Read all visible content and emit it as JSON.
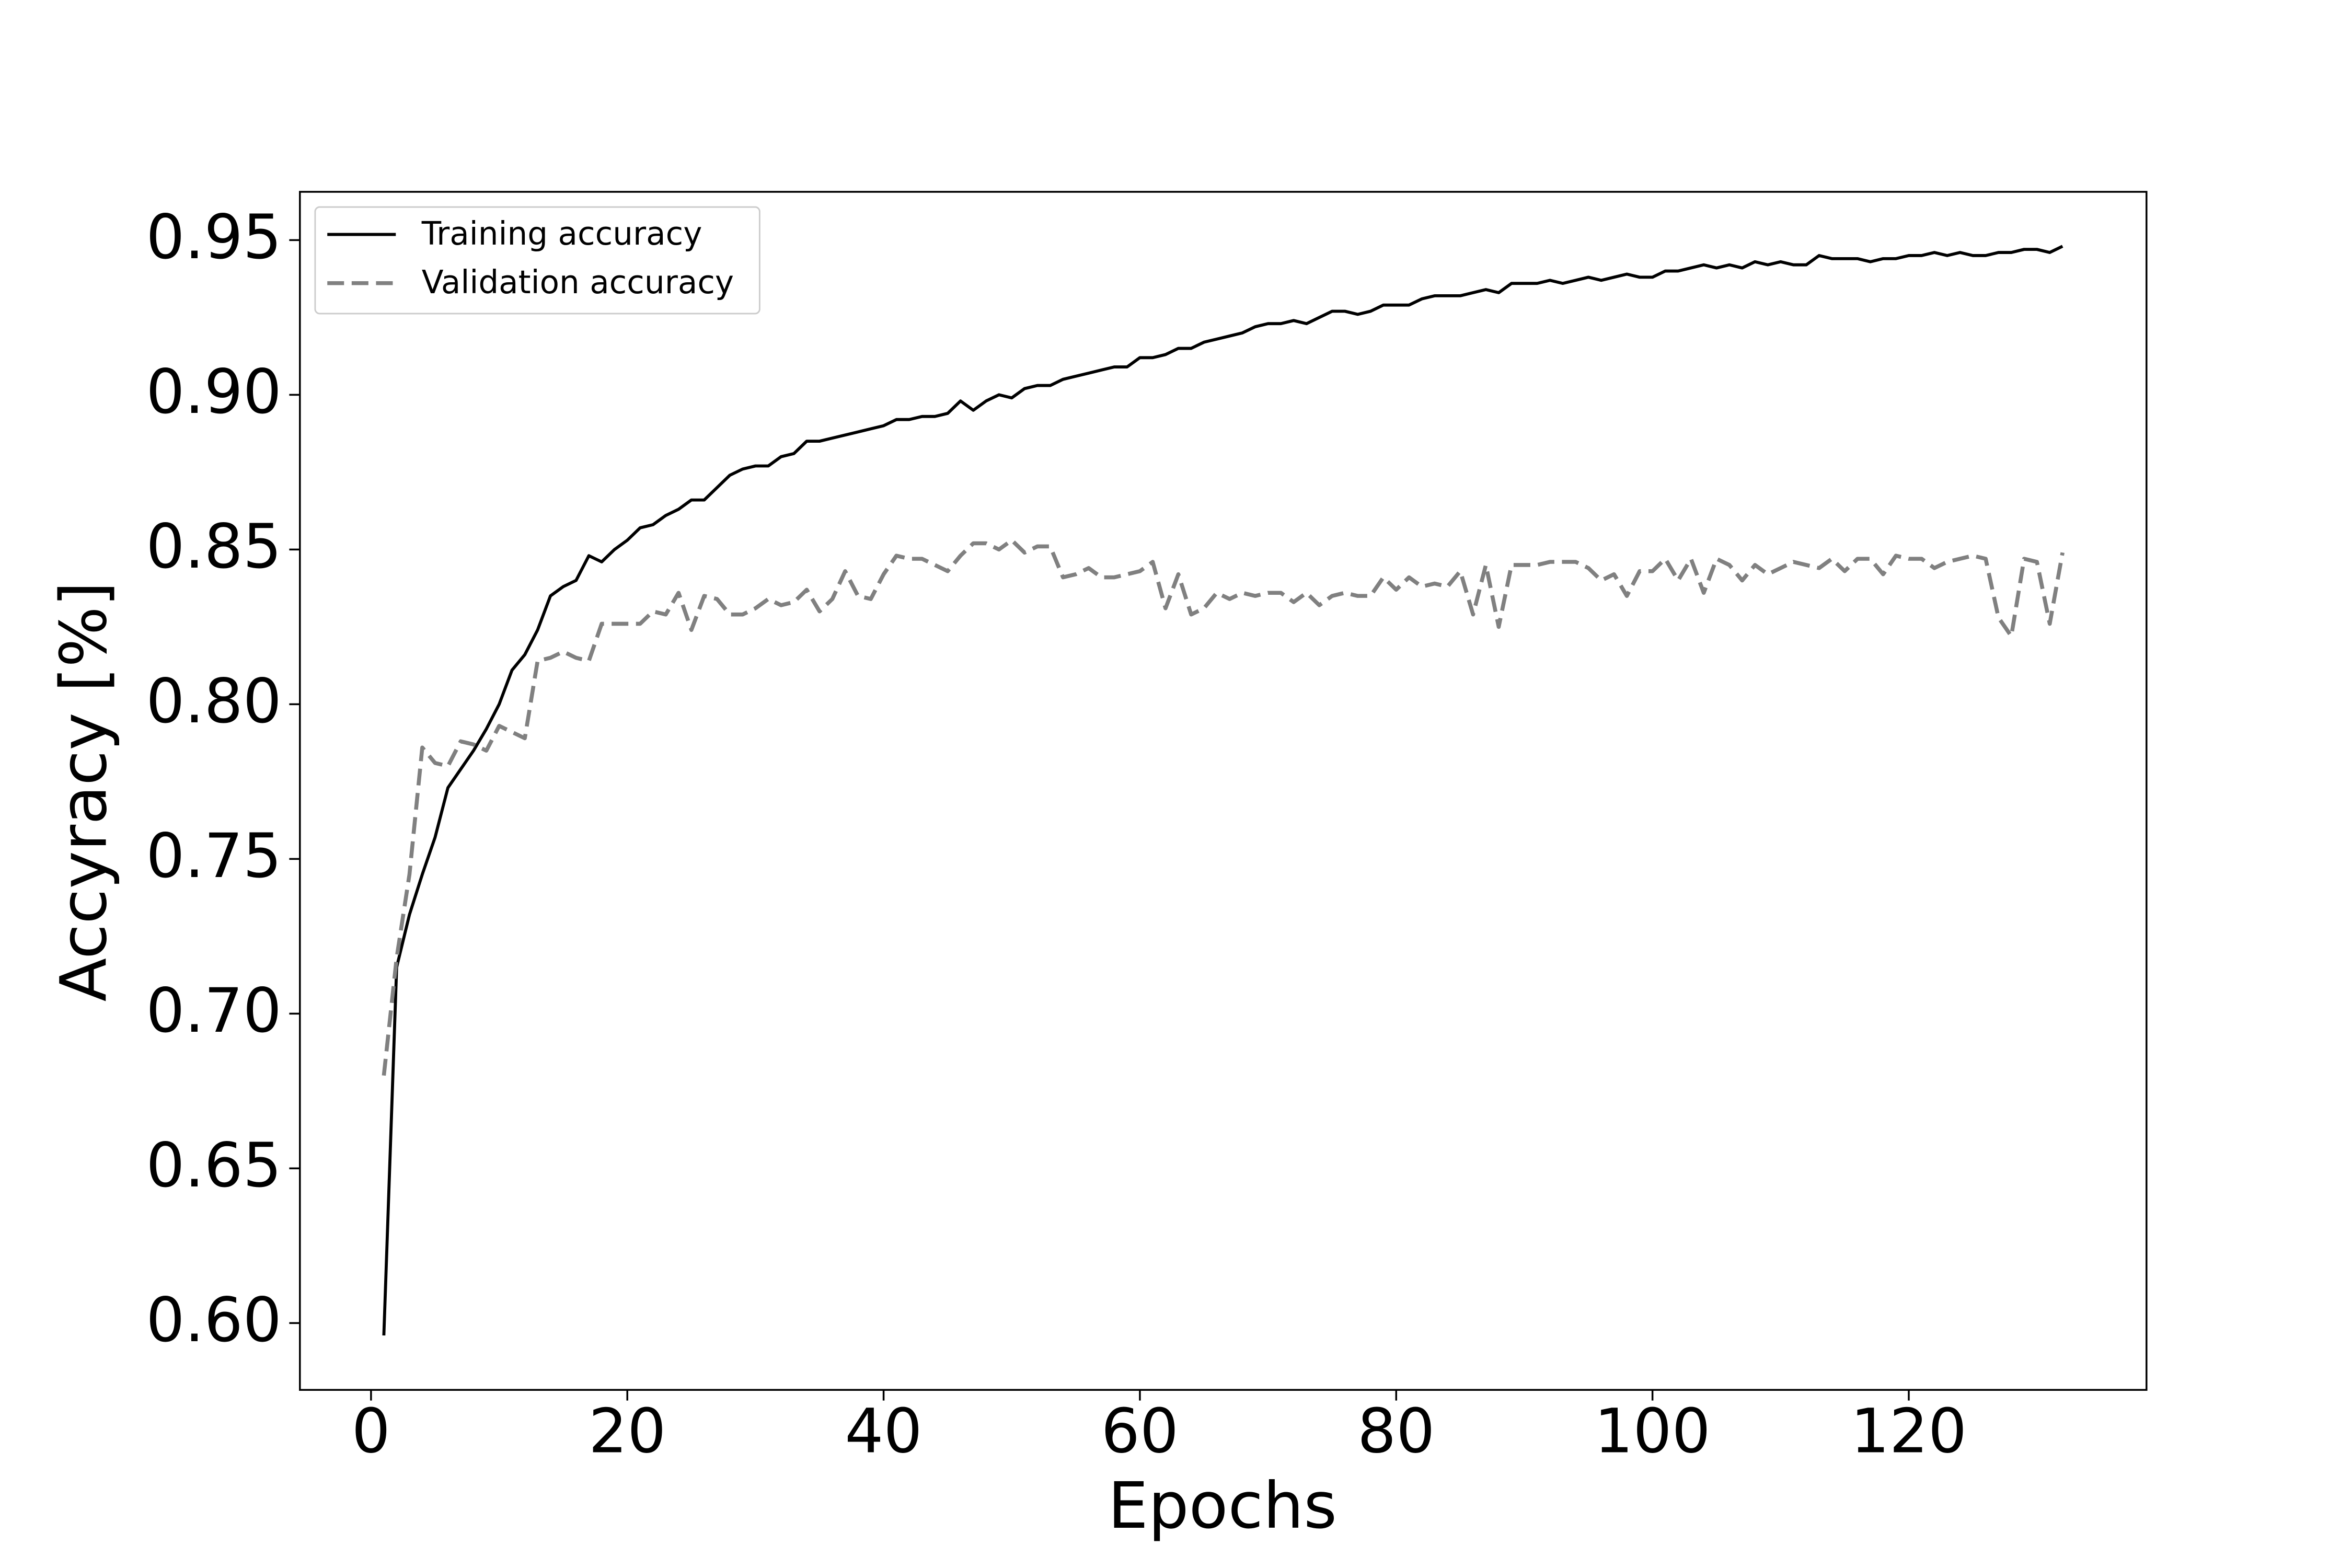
{
  "chart_data": {
    "type": "line",
    "xlabel": "Epochs",
    "ylabel": "Accyracy [%]",
    "x": [
      1,
      2,
      3,
      4,
      5,
      6,
      7,
      8,
      9,
      10,
      11,
      12,
      13,
      14,
      15,
      16,
      17,
      18,
      19,
      20,
      21,
      22,
      23,
      24,
      25,
      26,
      27,
      28,
      29,
      30,
      31,
      32,
      33,
      34,
      35,
      36,
      37,
      38,
      39,
      40,
      41,
      42,
      43,
      44,
      45,
      46,
      47,
      48,
      49,
      50,
      51,
      52,
      53,
      54,
      55,
      56,
      57,
      58,
      59,
      60,
      61,
      62,
      63,
      64,
      65,
      66,
      67,
      68,
      69,
      70,
      71,
      72,
      73,
      74,
      75,
      76,
      77,
      78,
      79,
      80,
      81,
      82,
      83,
      84,
      85,
      86,
      87,
      88,
      89,
      90,
      91,
      92,
      93,
      94,
      95,
      96,
      97,
      98,
      99,
      100,
      101,
      102,
      103,
      104,
      105,
      106,
      107,
      108,
      109,
      110,
      111,
      112,
      113,
      114,
      115,
      116,
      117,
      118,
      119,
      120,
      121,
      122,
      123,
      124,
      125,
      126,
      127,
      128,
      129,
      130,
      131,
      132
    ],
    "series": [
      {
        "name": "Training accuracy",
        "color": "#000000",
        "linestyle": "solid",
        "values": [
          0.596,
          0.715,
          0.732,
          0.745,
          0.757,
          0.773,
          0.779,
          0.785,
          0.792,
          0.8,
          0.811,
          0.816,
          0.824,
          0.835,
          0.838,
          0.84,
          0.848,
          0.846,
          0.85,
          0.853,
          0.857,
          0.858,
          0.861,
          0.863,
          0.866,
          0.866,
          0.87,
          0.874,
          0.876,
          0.877,
          0.877,
          0.88,
          0.881,
          0.885,
          0.885,
          0.886,
          0.887,
          0.888,
          0.889,
          0.89,
          0.892,
          0.892,
          0.893,
          0.893,
          0.894,
          0.898,
          0.895,
          0.898,
          0.9,
          0.899,
          0.902,
          0.903,
          0.903,
          0.905,
          0.906,
          0.907,
          0.908,
          0.909,
          0.909,
          0.912,
          0.912,
          0.913,
          0.915,
          0.915,
          0.917,
          0.918,
          0.919,
          0.92,
          0.922,
          0.923,
          0.923,
          0.924,
          0.923,
          0.925,
          0.927,
          0.927,
          0.926,
          0.927,
          0.929,
          0.929,
          0.929,
          0.931,
          0.932,
          0.932,
          0.932,
          0.933,
          0.934,
          0.933,
          0.936,
          0.936,
          0.936,
          0.937,
          0.936,
          0.937,
          0.938,
          0.937,
          0.938,
          0.939,
          0.938,
          0.938,
          0.94,
          0.94,
          0.941,
          0.942,
          0.941,
          0.942,
          0.941,
          0.943,
          0.942,
          0.943,
          0.942,
          0.942,
          0.945,
          0.944,
          0.944,
          0.944,
          0.943,
          0.944,
          0.944,
          0.945,
          0.945,
          0.946,
          0.945,
          0.946,
          0.945,
          0.945,
          0.946,
          0.946,
          0.947,
          0.947,
          0.946,
          0.948
        ]
      },
      {
        "name": "Validation accuracy",
        "color": "#808080",
        "linestyle": "dashed",
        "values": [
          0.68,
          0.718,
          0.745,
          0.786,
          0.781,
          0.78,
          0.788,
          0.787,
          0.785,
          0.793,
          0.791,
          0.789,
          0.814,
          0.815,
          0.817,
          0.815,
          0.814,
          0.826,
          0.826,
          0.826,
          0.826,
          0.83,
          0.829,
          0.836,
          0.824,
          0.835,
          0.834,
          0.829,
          0.829,
          0.831,
          0.834,
          0.832,
          0.833,
          0.837,
          0.83,
          0.834,
          0.843,
          0.835,
          0.834,
          0.842,
          0.848,
          0.847,
          0.847,
          0.845,
          0.843,
          0.848,
          0.852,
          0.852,
          0.85,
          0.853,
          0.849,
          0.851,
          0.851,
          0.841,
          0.842,
          0.844,
          0.841,
          0.841,
          0.842,
          0.843,
          0.846,
          0.831,
          0.842,
          0.829,
          0.831,
          0.836,
          0.834,
          0.836,
          0.835,
          0.836,
          0.836,
          0.833,
          0.836,
          0.832,
          0.835,
          0.836,
          0.835,
          0.835,
          0.841,
          0.837,
          0.841,
          0.838,
          0.839,
          0.838,
          0.843,
          0.829,
          0.845,
          0.825,
          0.845,
          0.845,
          0.845,
          0.846,
          0.846,
          0.846,
          0.844,
          0.84,
          0.842,
          0.835,
          0.843,
          0.843,
          0.847,
          0.84,
          0.847,
          0.836,
          0.847,
          0.845,
          0.84,
          0.845,
          0.842,
          0.844,
          0.846,
          0.845,
          0.844,
          0.847,
          0.843,
          0.847,
          0.847,
          0.842,
          0.848,
          0.847,
          0.847,
          0.844,
          0.846,
          0.847,
          0.848,
          0.847,
          0.828,
          0.822,
          0.847,
          0.846,
          0.826,
          0.849
        ]
      }
    ],
    "xlim": [
      -5.55,
      138.55
    ],
    "xticks": [
      0,
      20,
      40,
      60,
      80,
      100,
      120
    ],
    "ylim": [
      0.5784,
      0.9656
    ],
    "yticks": [
      {
        "value": 0.6,
        "label": "0.60"
      },
      0.65,
      {
        "value": 0.7,
        "label": "0.70"
      },
      0.75,
      {
        "value": 0.8,
        "label": "0.80"
      },
      0.85,
      {
        "value": 0.9,
        "label": "0.90"
      },
      0.95
    ],
    "grid": false,
    "legend": "upper left"
  }
}
